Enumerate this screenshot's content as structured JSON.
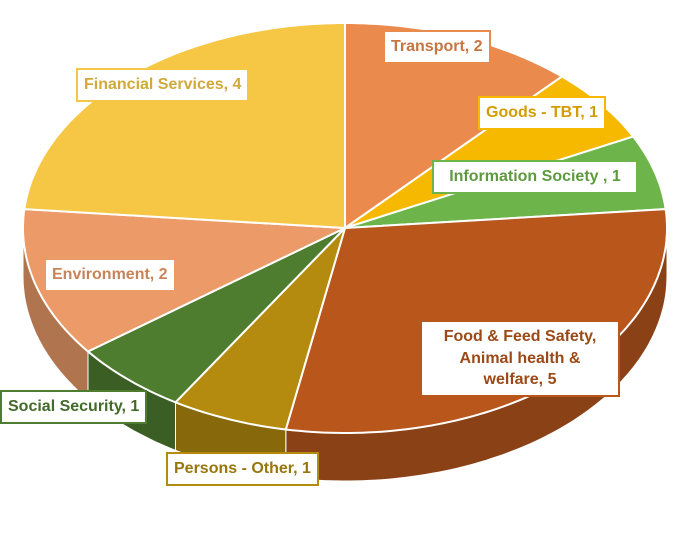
{
  "chart_data": {
    "type": "pie",
    "labels": [
      "Transport, 2",
      "Goods - TBT, 1",
      "Information Society , 1",
      "Food & Feed Safety, Animal health & welfare, 5",
      "Persons - Other, 1",
      "Social Security, 1",
      "Environment, 2",
      "Financial Services, 4"
    ],
    "values": [
      2,
      1,
      1,
      5,
      1,
      1,
      2,
      4
    ],
    "colors": [
      "#ea8a4c",
      "#f7b900",
      "#6db54a",
      "#b8561c",
      "#b48b0e",
      "#4e7d30",
      "#eb9a68",
      "#f6c744"
    ]
  }
}
